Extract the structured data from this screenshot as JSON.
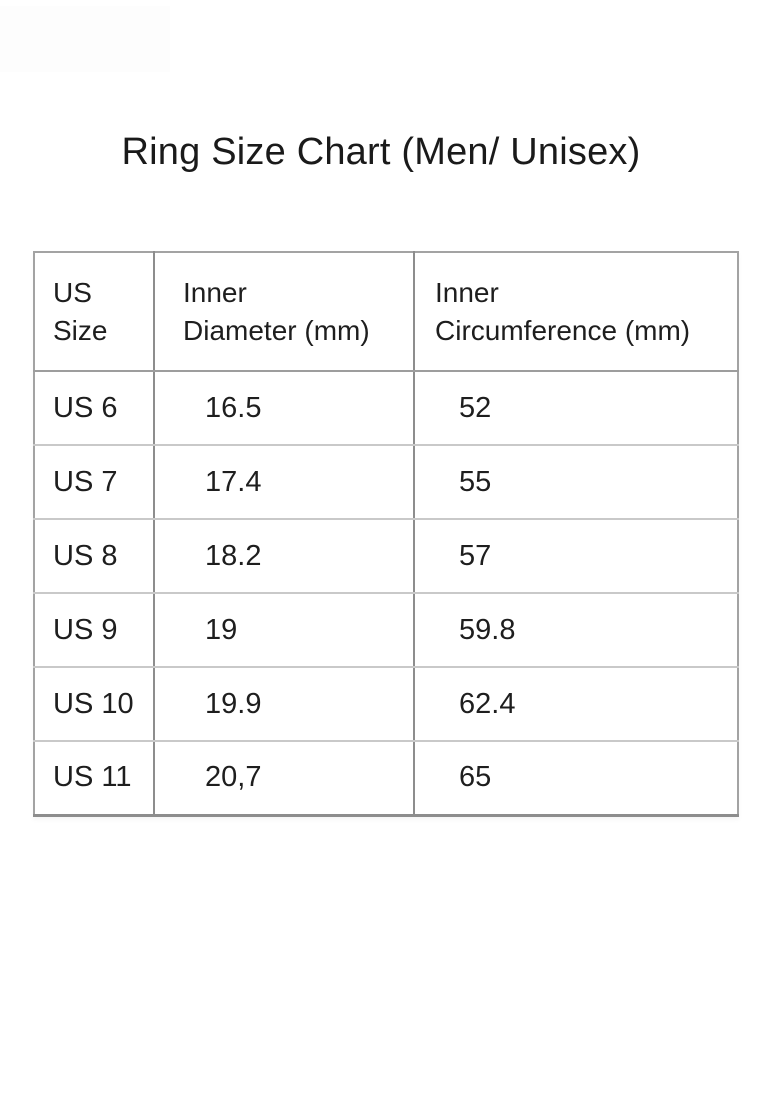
{
  "title": "Ring Size Chart (Men/ Unisex)",
  "table": {
    "header": {
      "us_size": "US\nSize",
      "inner_diameter": "Inner\nDiameter (mm)",
      "inner_circumference": "Inner\nCircumference (mm)"
    },
    "rows": [
      {
        "us_size": "US 6",
        "inner_diameter_mm": "16.5",
        "inner_circumference_mm": "52"
      },
      {
        "us_size": "US 7",
        "inner_diameter_mm": "17.4",
        "inner_circumference_mm": "55"
      },
      {
        "us_size": "US 8",
        "inner_diameter_mm": "18.2",
        "inner_circumference_mm": "57"
      },
      {
        "us_size": "US 9",
        "inner_diameter_mm": "19",
        "inner_circumference_mm": "59.8"
      },
      {
        "us_size": "US 10",
        "inner_diameter_mm": "19.9",
        "inner_circumference_mm": "62.4"
      },
      {
        "us_size": "US 11",
        "inner_diameter_mm": "20,7",
        "inner_circumference_mm": "65"
      }
    ]
  },
  "chart_data": {
    "type": "table",
    "title": "Ring Size Chart (Men/ Unisex)",
    "columns": [
      "US Size",
      "Inner Diameter (mm)",
      "Inner Circumference (mm)"
    ],
    "rows": [
      [
        "US 6",
        "16.5",
        "52"
      ],
      [
        "US 7",
        "17.4",
        "55"
      ],
      [
        "US 8",
        "18.2",
        "57"
      ],
      [
        "US 9",
        "19",
        "59.8"
      ],
      [
        "US 10",
        "19.9",
        "62.4"
      ],
      [
        "US 11",
        "20,7",
        "65"
      ]
    ]
  },
  "colors": {
    "background": "#ffffff",
    "text": "#1b1b1b",
    "border_outer": "#a3a3a3",
    "border_column": "#8d8d8d",
    "border_row": "#c9c9c9",
    "border_bottom": "#8d8d8d"
  }
}
